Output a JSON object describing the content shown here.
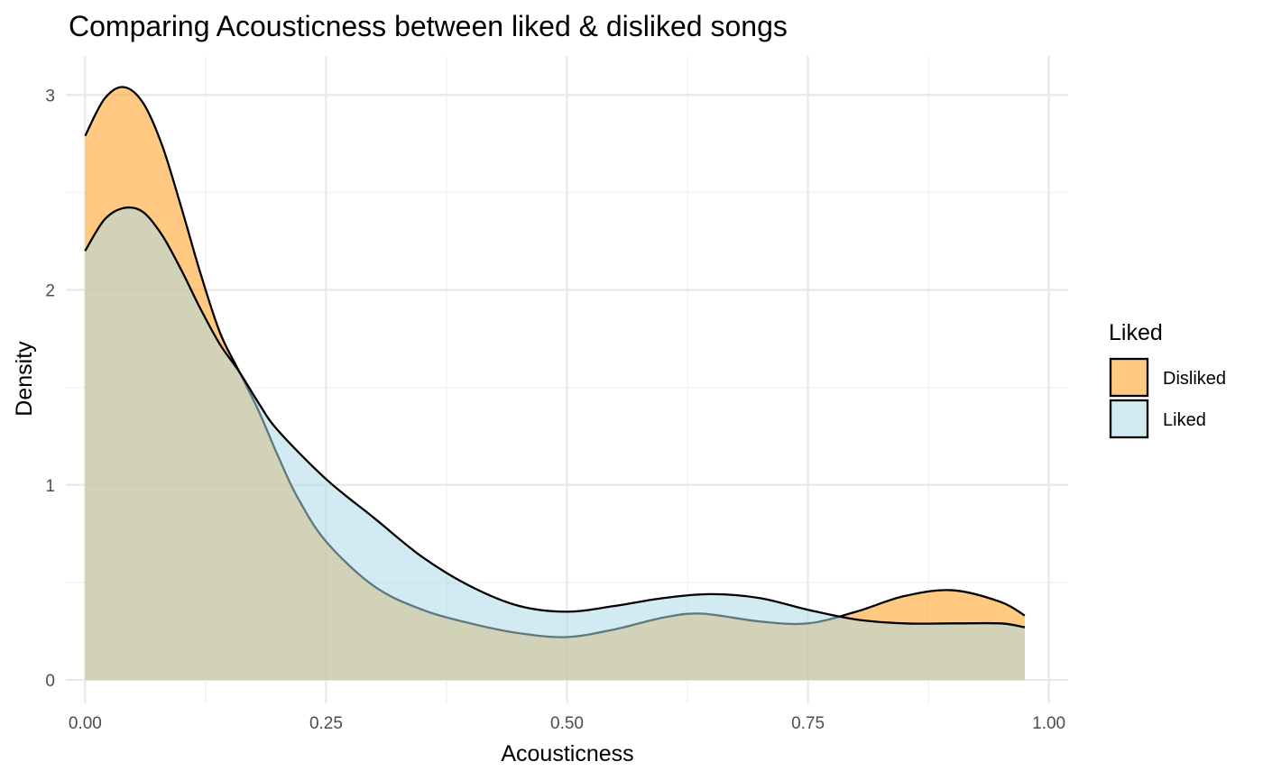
{
  "chart_data": {
    "type": "area",
    "subtype": "density",
    "title": "Comparing Acousticness between liked & disliked songs",
    "xlabel": "Acousticness",
    "ylabel": "Density",
    "xlim": [
      -0.02,
      1.02
    ],
    "ylim": [
      -0.12,
      3.2
    ],
    "x_ticks": [
      0.0,
      0.25,
      0.5,
      0.75,
      1.0
    ],
    "x_tick_labels": [
      "0.00",
      "0.25",
      "0.50",
      "0.75",
      "1.00"
    ],
    "y_ticks": [
      0,
      1,
      2,
      3
    ],
    "y_tick_labels": [
      "0",
      "1",
      "2",
      "3"
    ],
    "grid": true,
    "legend": {
      "title": "Liked",
      "placement": "right"
    },
    "series": [
      {
        "name": "Disliked",
        "color": "#FFA52F",
        "opacity": 0.6,
        "x": [
          0.0,
          0.02,
          0.04,
          0.06,
          0.08,
          0.1,
          0.12,
          0.14,
          0.16,
          0.18,
          0.2,
          0.22,
          0.25,
          0.3,
          0.35,
          0.4,
          0.45,
          0.5,
          0.55,
          0.6,
          0.64,
          0.7,
          0.75,
          0.8,
          0.85,
          0.9,
          0.95,
          0.975
        ],
        "y": [
          2.79,
          2.98,
          3.04,
          2.96,
          2.74,
          2.42,
          2.08,
          1.78,
          1.58,
          1.38,
          1.15,
          0.94,
          0.71,
          0.48,
          0.36,
          0.29,
          0.24,
          0.22,
          0.26,
          0.32,
          0.34,
          0.3,
          0.29,
          0.35,
          0.43,
          0.46,
          0.4,
          0.33
        ]
      },
      {
        "name": "Liked",
        "color": "#ADD8E6",
        "opacity": 0.55,
        "x": [
          0.0,
          0.02,
          0.04,
          0.06,
          0.08,
          0.1,
          0.12,
          0.14,
          0.16,
          0.18,
          0.2,
          0.25,
          0.3,
          0.35,
          0.4,
          0.45,
          0.5,
          0.55,
          0.6,
          0.65,
          0.7,
          0.75,
          0.8,
          0.85,
          0.9,
          0.95,
          0.975
        ],
        "y": [
          2.2,
          2.36,
          2.42,
          2.4,
          2.28,
          2.1,
          1.9,
          1.72,
          1.58,
          1.42,
          1.28,
          1.03,
          0.83,
          0.63,
          0.48,
          0.38,
          0.35,
          0.38,
          0.42,
          0.44,
          0.42,
          0.36,
          0.31,
          0.29,
          0.29,
          0.29,
          0.27
        ]
      }
    ]
  }
}
